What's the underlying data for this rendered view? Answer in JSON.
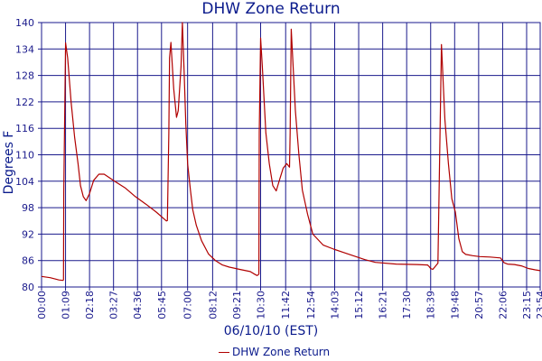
{
  "chart_data": {
    "type": "line",
    "title": "DHW Zone Return",
    "xlabel": "06/10/10 (EST)",
    "ylabel": "Degrees F",
    "yticks": [
      "80",
      "86",
      "92",
      "98",
      "104",
      "110",
      "116",
      "122",
      "128",
      "134",
      "140"
    ],
    "ylim": [
      80,
      140
    ],
    "xticks": [
      "00:00",
      "01:09",
      "02:18",
      "03:27",
      "04:36",
      "05:45",
      "07:00",
      "08:12",
      "09:21",
      "10:30",
      "11:42",
      "12:54",
      "14:03",
      "15:12",
      "16:21",
      "17:30",
      "18:39",
      "19:48",
      "20:57",
      "22:06",
      "23:15",
      "23:54"
    ],
    "xlim": [
      "00:00",
      "23:54"
    ],
    "grid": true,
    "legend_position": "bottom-center",
    "series": [
      {
        "name": "DHW Zone Return",
        "color": "#b00000",
        "x": [
          "00:00",
          "00:25",
          "00:40",
          "00:50",
          "01:02",
          "01:03",
          "01:04",
          "01:09",
          "01:15",
          "01:25",
          "01:35",
          "01:45",
          "01:52",
          "02:00",
          "02:08",
          "02:18",
          "02:30",
          "02:45",
          "03:00",
          "03:30",
          "04:00",
          "04:30",
          "05:00",
          "05:30",
          "05:59",
          "06:02",
          "06:06",
          "06:08",
          "06:12",
          "06:20",
          "06:28",
          "06:33",
          "06:41",
          "06:45",
          "06:50",
          "06:55",
          "07:00",
          "07:08",
          "07:15",
          "07:25",
          "07:40",
          "08:00",
          "08:20",
          "08:40",
          "09:00",
          "09:30",
          "10:00",
          "10:15",
          "10:20",
          "10:25",
          "10:26",
          "10:30",
          "10:35",
          "10:45",
          "10:55",
          "11:05",
          "11:15",
          "11:25",
          "11:35",
          "11:40",
          "11:45",
          "11:53",
          "11:55",
          "11:58",
          "12:10",
          "12:20",
          "12:30",
          "12:45",
          "13:00",
          "13:30",
          "14:00",
          "14:30",
          "15:00",
          "15:30",
          "16:00",
          "17:00",
          "18:00",
          "18:30",
          "18:35",
          "18:39",
          "18:45",
          "19:00",
          "19:10",
          "19:20",
          "19:30",
          "19:40",
          "19:50",
          "20:00",
          "20:10",
          "20:20",
          "20:40",
          "21:00",
          "21:30",
          "22:00",
          "22:10",
          "22:20",
          "22:40",
          "23:00",
          "23:20",
          "23:40",
          "23:54"
        ],
        "values": [
          82.4,
          82.1,
          81.8,
          81.6,
          81.5,
          81.7,
          101.5,
          135.4,
          132,
          122,
          114,
          108,
          103,
          100.5,
          99.6,
          101.2,
          104.2,
          105.6,
          105.6,
          104,
          102.5,
          100.5,
          98.8,
          97,
          95,
          95.1,
          115,
          132,
          135.5,
          125,
          118.5,
          120,
          130,
          140,
          129,
          117,
          108,
          102,
          97.5,
          94,
          90.5,
          87.5,
          86,
          85,
          84.5,
          84,
          83.5,
          82.8,
          82.6,
          82.9,
          115,
          136.5,
          130,
          115,
          108,
          103,
          101.8,
          104.5,
          107,
          107.5,
          108,
          107.2,
          115,
          138.5,
          120,
          110,
          102,
          96.5,
          92,
          89.5,
          88.6,
          87.8,
          87,
          86.2,
          85.6,
          85.2,
          85.1,
          85,
          84.6,
          84.2,
          84,
          85.4,
          135,
          118,
          108,
          100,
          97,
          91,
          88,
          87.4,
          87.1,
          86.9,
          86.8,
          86.6,
          85.5,
          85.2,
          85.1,
          84.8,
          84.2,
          83.9,
          83.7
        ]
      }
    ]
  }
}
